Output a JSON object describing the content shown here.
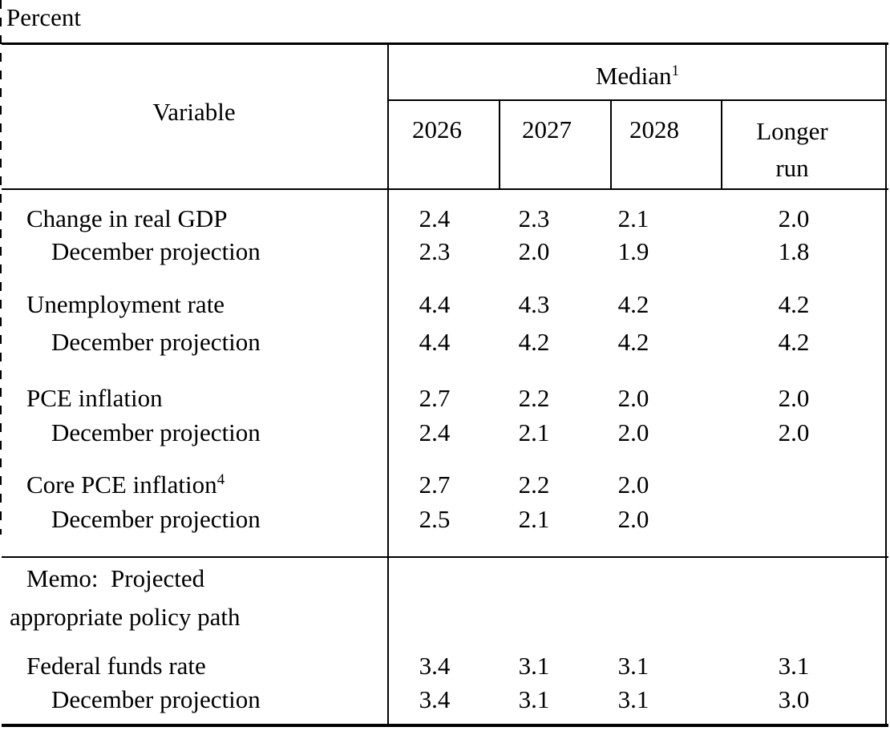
{
  "unit_label": "Percent",
  "header": {
    "variable": "Variable",
    "median_text": "Median",
    "median_sup": "1",
    "years": [
      "2026",
      "2027",
      "2028"
    ],
    "longer_run_line1": "Longer",
    "longer_run_line2": "run"
  },
  "rows": [
    {
      "label": "Change in real GDP",
      "indent": false,
      "values": [
        "2.4",
        "2.3",
        "2.1",
        "2.0"
      ]
    },
    {
      "label": "December projection",
      "indent": true,
      "values": [
        "2.3",
        "2.0",
        "1.9",
        "1.8"
      ]
    },
    {
      "label": "Unemployment rate",
      "indent": false,
      "values": [
        "4.4",
        "4.3",
        "4.2",
        "4.2"
      ]
    },
    {
      "label": "December projection",
      "indent": true,
      "values": [
        "4.4",
        "4.2",
        "4.2",
        "4.2"
      ]
    },
    {
      "label": "PCE inflation",
      "indent": false,
      "values": [
        "2.7",
        "2.2",
        "2.0",
        "2.0"
      ]
    },
    {
      "label": "December projection",
      "indent": true,
      "values": [
        "2.4",
        "2.1",
        "2.0",
        "2.0"
      ]
    },
    {
      "label": "Core PCE inflation",
      "sup": "4",
      "indent": false,
      "values": [
        "2.7",
        "2.2",
        "2.0",
        ""
      ]
    },
    {
      "label": "December projection",
      "indent": true,
      "values": [
        "2.5",
        "2.1",
        "2.0",
        ""
      ]
    },
    {
      "label": "Federal funds rate",
      "indent": false,
      "values": [
        "3.4",
        "3.1",
        "3.1",
        "3.1"
      ]
    },
    {
      "label": "December projection",
      "indent": true,
      "values": [
        "3.4",
        "3.1",
        "3.1",
        "3.0"
      ]
    }
  ],
  "memo": {
    "line1": "Memo:  Projected",
    "line2": "appropriate policy path"
  },
  "colors": {
    "ink": "#000000",
    "background": "#ffffff"
  }
}
